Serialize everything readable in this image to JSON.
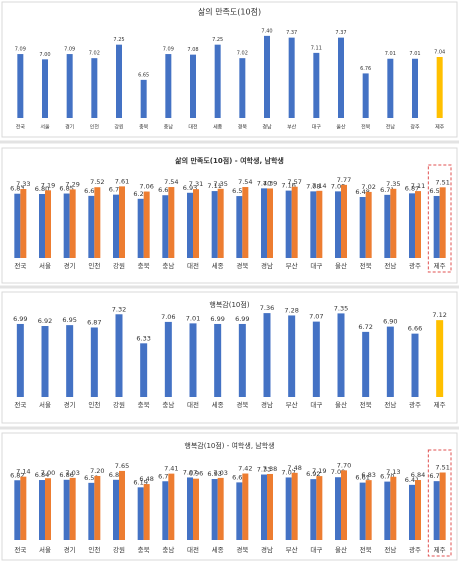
{
  "chart_data": [
    {
      "type": "bar",
      "title": "삶의 만족도(10점)",
      "categories": [
        "전국",
        "서울",
        "경기",
        "인천",
        "강원",
        "충북",
        "충남",
        "대전",
        "세종",
        "경북",
        "경남",
        "부산",
        "대구",
        "울산",
        "전북",
        "전남",
        "광주",
        "제주"
      ],
      "values": [
        7.09,
        7.0,
        7.09,
        7.02,
        7.25,
        6.65,
        7.09,
        7.08,
        7.25,
        7.02,
        7.4,
        7.37,
        7.11,
        7.37,
        6.76,
        7.01,
        7.01,
        7.04
      ],
      "value_labels": [
        "7.09",
        "7.00",
        "7.09",
        "7.02",
        "7.25",
        "6.65",
        "7.09",
        "7.08",
        "7.25",
        "7.02",
        "7.40",
        "7.37",
        "7.11",
        "7.37",
        "6.76",
        "7.01",
        "7.01",
        "7.04"
      ],
      "colors": [
        "#4472c4",
        "#4472c4",
        "#4472c4",
        "#4472c4",
        "#4472c4",
        "#4472c4",
        "#4472c4",
        "#4472c4",
        "#4472c4",
        "#4472c4",
        "#4472c4",
        "#4472c4",
        "#4472c4",
        "#4472c4",
        "#4472c4",
        "#4472c4",
        "#4472c4",
        "#ffc000"
      ],
      "ylim": [
        6.0,
        7.5
      ]
    },
    {
      "type": "grouped_bar",
      "title": "삶의 만족도(10점) - 여학생, 남학생",
      "categories": [
        "전국",
        "서울",
        "경기",
        "인천",
        "강원",
        "충북",
        "충남",
        "대전",
        "세종",
        "경북",
        "경남",
        "부산",
        "대구",
        "울산",
        "전북",
        "전남",
        "광주",
        "제주"
      ],
      "series": [
        {
          "color": "#4472c4",
          "values": [
            6.83,
            6.8,
            6.85,
            6.6,
            6.73,
            6.29,
            6.67,
            6.93,
            7.11,
            6.58,
            7.4,
            7.16,
            7.08,
            7.08,
            6.48,
            6.71,
            6.87,
            6.59
          ],
          "value_labels": [
            "6.83",
            "6.80",
            "6.85",
            "6.60",
            "6.73",
            "6.29",
            "6.67",
            "6.93",
            "7.11",
            "6.58",
            "7.40",
            "7.16",
            "7.08",
            "7.08",
            "6.48",
            "6.71",
            "6.87",
            "6.59"
          ]
        },
        {
          "color": "#ed7d31",
          "values": [
            7.33,
            7.19,
            7.29,
            7.52,
            7.61,
            7.06,
            7.54,
            7.31,
            7.35,
            7.54,
            7.39,
            7.57,
            7.14,
            7.77,
            7.02,
            7.35,
            7.11,
            7.51
          ],
          "value_labels": [
            "7.33",
            "7.19",
            "7.29",
            "7.52",
            "7.61",
            "7.06",
            "7.54",
            "7.31",
            "7.35",
            "7.54",
            "7.39",
            "7.57",
            "7.14",
            "7.77",
            "7.02",
            "7.35",
            "7.11",
            "7.51"
          ]
        }
      ],
      "ylim": [
        0,
        8.5
      ]
    },
    {
      "type": "bar",
      "title": "행복감(10점)",
      "categories": [
        "전국",
        "서울",
        "경기",
        "인천",
        "강원",
        "충북",
        "충남",
        "대전",
        "세종",
        "경북",
        "경남",
        "부산",
        "대구",
        "울산",
        "전북",
        "전남",
        "광주",
        "제주"
      ],
      "values": [
        6.99,
        6.92,
        6.95,
        6.87,
        7.32,
        6.33,
        7.06,
        7.01,
        6.99,
        6.99,
        7.36,
        7.28,
        7.07,
        7.35,
        6.72,
        6.9,
        6.66,
        7.12
      ],
      "value_labels": [
        "6.99",
        "6.92",
        "6.95",
        "6.87",
        "7.32",
        "6.33",
        "7.06",
        "7.01",
        "6.99",
        "6.99",
        "7.36",
        "7.28",
        "7.07",
        "7.35",
        "6.72",
        "6.90",
        "6.66",
        "7.12"
      ],
      "colors": [
        "#4472c4",
        "#4472c4",
        "#4472c4",
        "#4472c4",
        "#4472c4",
        "#4472c4",
        "#4472c4",
        "#4472c4",
        "#4472c4",
        "#4472c4",
        "#4472c4",
        "#4472c4",
        "#4472c4",
        "#4472c4",
        "#4472c4",
        "#4472c4",
        "#4472c4",
        "#ffc000"
      ],
      "ylim": [
        4.5,
        7.5
      ]
    },
    {
      "type": "grouped_bar",
      "title": "행복감(10점) - 여학생, 남학생",
      "categories": [
        "전국",
        "서울",
        "경기",
        "인천",
        "강원",
        "충북",
        "충남",
        "대전",
        "세종",
        "경북",
        "경남",
        "부산",
        "대구",
        "울산",
        "전북",
        "전남",
        "광주",
        "제주"
      ],
      "series": [
        {
          "color": "#4472c4",
          "values": [
            6.82,
            6.84,
            6.86,
            6.59,
            6.86,
            6.19,
            6.73,
            7.07,
            6.93,
            6.63,
            7.33,
            7.07,
            6.92,
            7.09,
            6.61,
            6.7,
            6.41,
            6.74
          ],
          "value_labels": [
            "6.82",
            "6.84",
            "6.86",
            "6.59",
            "6.86",
            "6.19",
            "6.73",
            "7.07",
            "6.93",
            "6.63",
            "7.33",
            "7.07",
            "6.92",
            "7.09",
            "6.61",
            "6.70",
            "6.41",
            "6.74"
          ]
        },
        {
          "color": "#ed7d31",
          "values": [
            7.14,
            7.0,
            7.03,
            7.2,
            7.65,
            6.48,
            7.41,
            6.96,
            7.03,
            7.42,
            7.38,
            7.48,
            7.19,
            7.7,
            6.83,
            7.13,
            6.84,
            7.51
          ],
          "value_labels": [
            "7.14",
            "7.00",
            "7.03",
            "7.20",
            "7.65",
            "6.48",
            "7.41",
            "6.96",
            "7.03",
            "7.42",
            "7.38",
            "7.48",
            "7.19",
            "7.70",
            "6.83",
            "7.13",
            "6.84",
            "7.51"
          ]
        }
      ],
      "ylim": [
        1.5,
        8.0
      ]
    }
  ]
}
